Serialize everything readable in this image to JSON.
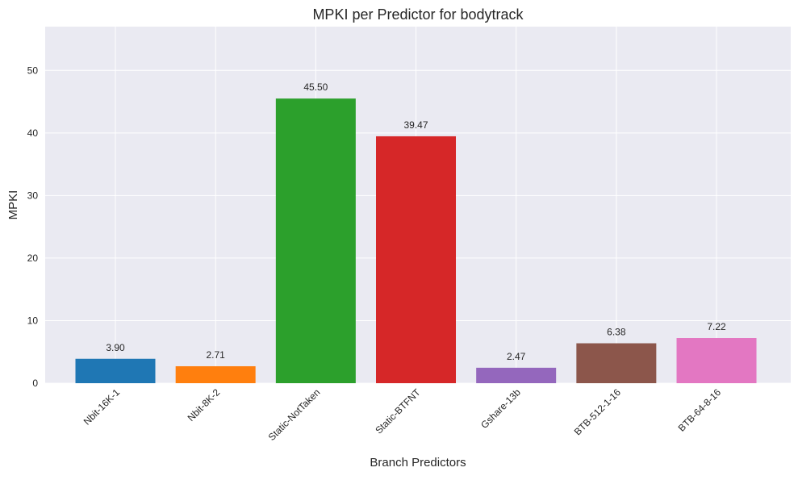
{
  "chart_data": {
    "type": "bar",
    "title": "MPKI per Predictor for bodytrack",
    "xlabel": "Branch Predictors",
    "ylabel": "MPKI",
    "categories": [
      "Nbit-16K-1",
      "Nbit-8K-2",
      "Static-NotTaken",
      "Static-BTFNT",
      "Gshare-13b",
      "BTB-512-1-16",
      "BTB-64-8-16"
    ],
    "values": [
      3.9,
      2.71,
      45.5,
      39.47,
      2.47,
      6.38,
      7.22
    ],
    "value_labels": [
      "3.90",
      "2.71",
      "45.50",
      "39.47",
      "2.47",
      "6.38",
      "7.22"
    ],
    "colors": [
      "#1f77b4",
      "#ff7f0e",
      "#2ca02c",
      "#d62728",
      "#9467bd",
      "#8c564b",
      "#e377c2"
    ],
    "ylim": [
      0,
      57
    ],
    "yticks": [
      0,
      10,
      20,
      30,
      40,
      50
    ],
    "grid": true,
    "background": "#eaeaf2",
    "gridColor": "#ffffff"
  }
}
